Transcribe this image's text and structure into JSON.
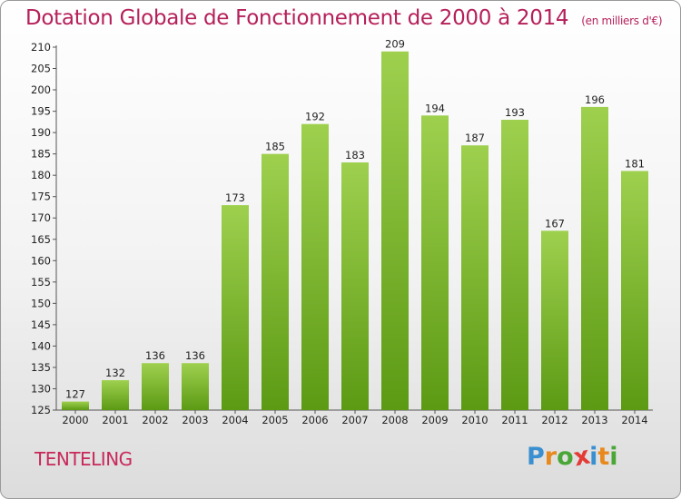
{
  "header": {
    "title": "Dotation Globale de Fonctionnement de 2000 à 2014",
    "unit": "(en milliers d'€)"
  },
  "footer": {
    "place": "TENTELING",
    "logo": {
      "letters": [
        "P",
        "r",
        "o",
        "x",
        "i",
        "t",
        "i"
      ],
      "colors": [
        "#3a8fd0",
        "#e8891d",
        "#4aa636",
        "#e43b36",
        "#3a8fd0",
        "#e8891d",
        "#4aa636"
      ]
    }
  },
  "chart_data": {
    "type": "bar",
    "title": "Dotation Globale de Fonctionnement de 2000 à 2014",
    "categories": [
      "2000",
      "2001",
      "2002",
      "2003",
      "2004",
      "2005",
      "2006",
      "2007",
      "2008",
      "2009",
      "2010",
      "2011",
      "2012",
      "2013",
      "2014"
    ],
    "values": [
      127,
      132,
      136,
      136,
      173,
      185,
      192,
      183,
      209,
      194,
      187,
      193,
      167,
      196,
      181
    ],
    "value_labels": [
      "127",
      "132",
      "136",
      "136",
      "173",
      "185",
      "192",
      "183",
      "209",
      "194",
      "187",
      "193",
      "167",
      "196",
      "181"
    ],
    "yticks": [
      "125",
      "130",
      "135",
      "140",
      "145",
      "150",
      "155",
      "160",
      "165",
      "170",
      "175",
      "180",
      "185",
      "190",
      "195",
      "200",
      "205",
      "210"
    ],
    "ylim": [
      125,
      210
    ],
    "grid": false,
    "bar_color": "#7fba3a"
  }
}
